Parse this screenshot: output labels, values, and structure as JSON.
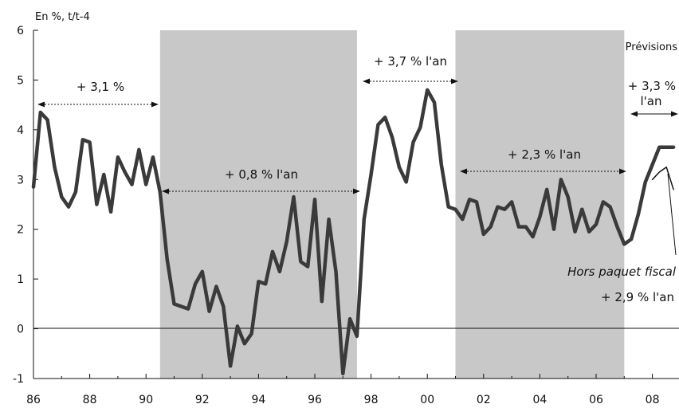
{
  "chart_data": {
    "type": "line",
    "unit_label": "En %, t/t-4",
    "ylim": [
      -1,
      6
    ],
    "y_ticks": [
      "-1",
      "0",
      "1",
      "2",
      "3",
      "4",
      "5",
      "6"
    ],
    "xlim": [
      1986,
      2008.75
    ],
    "x_tick_labels": [
      "86",
      "88",
      "90",
      "92",
      "94",
      "96",
      "98",
      "00",
      "02",
      "04",
      "06",
      "08"
    ],
    "grid": false,
    "shaded_periods": [
      [
        1990.5,
        1997.5
      ],
      [
        2001.0,
        2007.0
      ]
    ],
    "series": [
      {
        "x": [
          1986.0,
          1986.25,
          1986.5,
          1986.75,
          1987.0,
          1987.25,
          1987.5,
          1987.75,
          1988.0,
          1988.25,
          1988.5,
          1988.75,
          1989.0,
          1989.25,
          1989.5,
          1989.75,
          1990.0,
          1990.25,
          1990.5,
          1990.75,
          1991.0,
          1991.25,
          1991.5,
          1991.75,
          1992.0,
          1992.25,
          1992.5,
          1992.75,
          1993.0,
          1993.25,
          1993.5,
          1993.75,
          1994.0,
          1994.25,
          1994.5,
          1994.75,
          1995.0,
          1995.25,
          1995.5,
          1995.75,
          1996.0,
          1996.25,
          1996.5,
          1996.75,
          1997.0,
          1997.25,
          1997.5,
          1997.75,
          1998.0,
          1998.25,
          1998.5,
          1998.75,
          1999.0,
          1999.25,
          1999.5,
          1999.75,
          2000.0,
          2000.25,
          2000.5,
          2000.75,
          2001.0,
          2001.25,
          2001.5,
          2001.75,
          2002.0,
          2002.25,
          2002.5,
          2002.75,
          2003.0,
          2003.25,
          2003.5,
          2003.75,
          2004.0,
          2004.25,
          2004.5,
          2004.75,
          2005.0,
          2005.25,
          2005.5,
          2005.75,
          2006.0,
          2006.25,
          2006.5,
          2006.75,
          2007.0,
          2007.25,
          2007.5,
          2007.75,
          2008.0,
          2008.25,
          2008.5,
          2008.75
        ],
        "values": [
          2.85,
          4.35,
          4.2,
          3.25,
          2.65,
          2.45,
          2.75,
          3.8,
          3.75,
          2.5,
          3.1,
          2.35,
          3.45,
          3.15,
          2.9,
          3.6,
          2.9,
          3.45,
          2.75,
          1.4,
          0.5,
          0.45,
          0.4,
          0.9,
          1.15,
          0.35,
          0.85,
          0.45,
          -0.75,
          0.05,
          -0.3,
          -0.1,
          0.95,
          0.9,
          1.55,
          1.15,
          1.75,
          2.65,
          1.35,
          1.25,
          2.6,
          0.55,
          2.2,
          1.15,
          -0.9,
          0.2,
          -0.15,
          2.2,
          3.1,
          4.1,
          4.25,
          3.85,
          3.25,
          2.95,
          3.75,
          4.05,
          4.8,
          4.55,
          3.3,
          2.45,
          2.4,
          2.2,
          2.6,
          2.55,
          1.9,
          2.05,
          2.45,
          2.4,
          2.55,
          2.05,
          2.05,
          1.85,
          2.25,
          2.8,
          2.0,
          3.0,
          2.65,
          1.95,
          2.4,
          1.95,
          2.1,
          2.55,
          2.45,
          2.05,
          1.7,
          1.8,
          2.3,
          2.95,
          3.3,
          3.65,
          3.65,
          3.65
        ]
      },
      {
        "x": [
          2008.0,
          2008.25,
          2008.5,
          2008.75
        ],
        "values": [
          3.0,
          3.15,
          3.25,
          2.8
        ]
      }
    ],
    "annotations": {
      "label_86_90": "+ 3,1 %",
      "label_91_97": "+ 0,8 % l'an",
      "label_98_00": "+ 3,7 % l'an",
      "label_01_06": "+ 2,3 % l'an",
      "label_forecast": "+ 3,3 %",
      "label_forecast_2": "l'an",
      "previsions": "Prévisions",
      "hors_paquet": "Hors paquet fiscal",
      "hors_paquet_value": "+ 2,9 % l'an"
    }
  }
}
